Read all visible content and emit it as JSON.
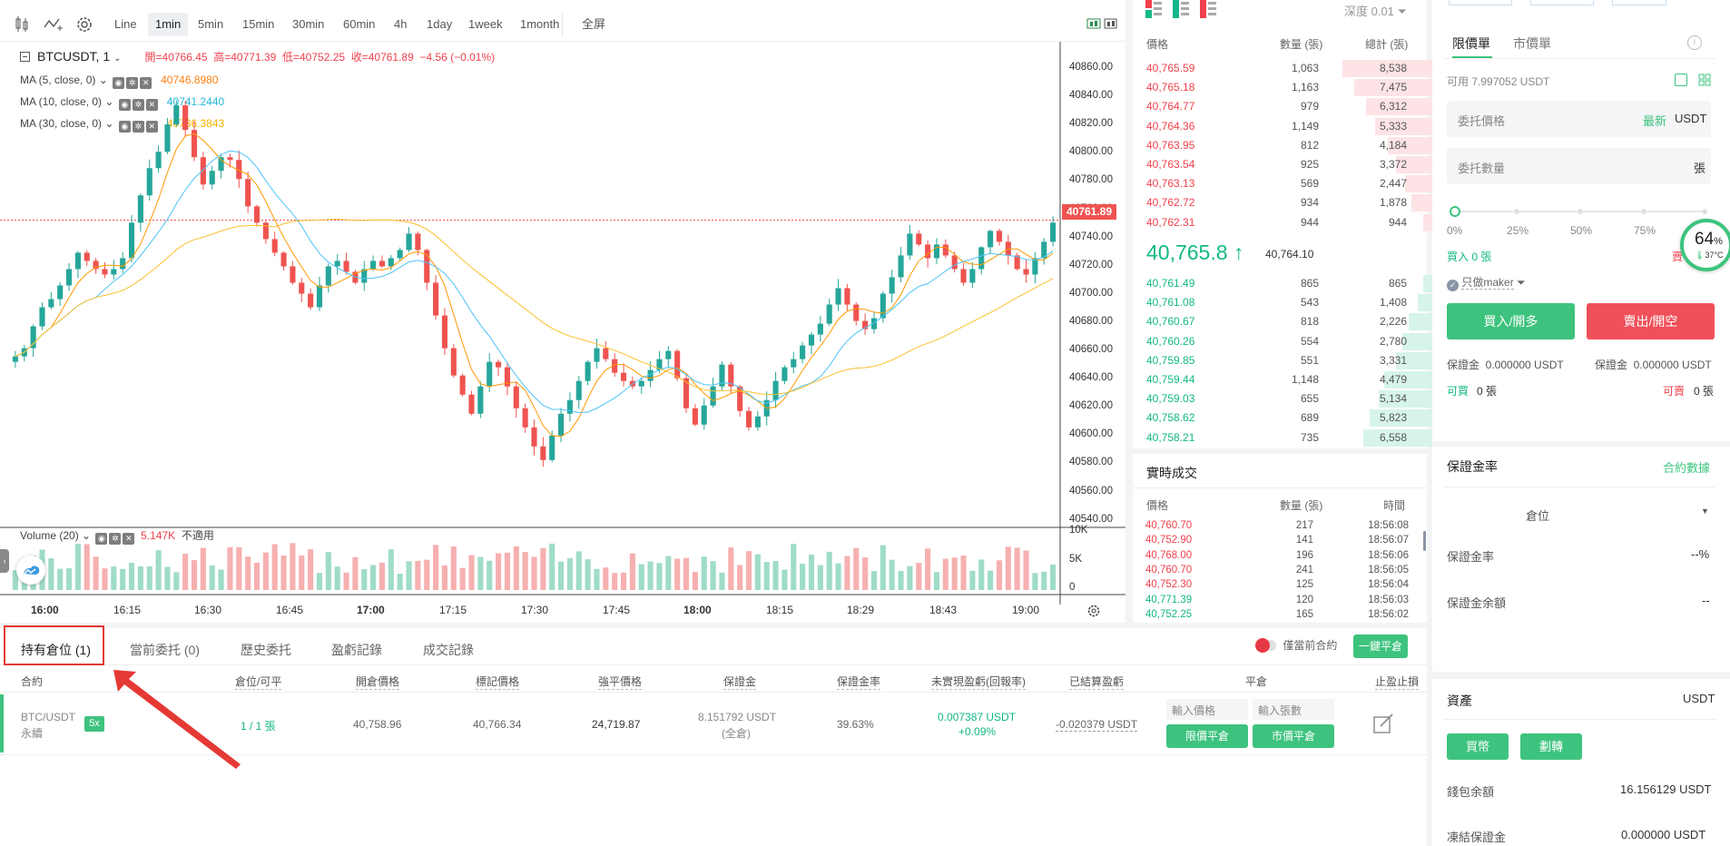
{
  "toolbar": {
    "intervals": [
      "Line",
      "1min",
      "5min",
      "15min",
      "30min",
      "60min",
      "4h",
      "1day",
      "1week",
      "1month",
      "全屏"
    ],
    "active": "1min"
  },
  "legend": {
    "symbol": "BTCUSDT, 1",
    "open_label": "開=40766.45",
    "high_label": "高=40771.39",
    "low_label": "低=40752.25",
    "close_label": "收=40761.89",
    "change": "−4.56 (−0.01%)",
    "ma5_label": "MA (5, close, 0)",
    "ma5_val": "40746.8980",
    "ma10_label": "MA (10, close, 0)",
    "ma10_val": "40741.2440",
    "ma30_label": "MA (30, close, 0)",
    "ma30_val": "40736.3843",
    "volume_label": "Volume (20)",
    "volume_val": "5.147K",
    "volume_na": "不適用"
  },
  "chart_data": {
    "type": "candlestick",
    "y_ticks": [
      "40860.00",
      "40840.00",
      "40820.00",
      "40800.00",
      "40780.00",
      "40760.00",
      "40740.00",
      "40720.00",
      "40700.00",
      "40680.00",
      "40660.00",
      "40640.00",
      "40620.00",
      "40600.00",
      "40580.00",
      "40560.00",
      "40540.00"
    ],
    "ylim": [
      40540,
      40870
    ],
    "x_ticks": [
      "16:00",
      "16:15",
      "16:30",
      "16:45",
      "17:00",
      "17:15",
      "17:30",
      "17:45",
      "18:00",
      "18:15",
      "18:29",
      "18:43",
      "19:00"
    ],
    "bold_x_ticks": [
      "16:00",
      "17:00",
      "18:00"
    ],
    "last_price": "40761.89",
    "volume_ticks": [
      "10K",
      "5K",
      "0"
    ],
    "colors": {
      "up": "#26a69a",
      "down": "#ef5350",
      "ma5": "#ff9800",
      "ma10": "#4fc3f7",
      "ma30": "#fbc02d"
    },
    "close_path": [
      40662,
      40668,
      40684,
      40698,
      40704,
      40714,
      40726,
      40738,
      40732,
      40726,
      40722,
      40726,
      40734,
      40760,
      40780,
      40800,
      40812,
      40832,
      40846,
      40828,
      40808,
      40788,
      40798,
      40808,
      40806,
      40792,
      40772,
      40760,
      40748,
      40738,
      40728,
      40716,
      40708,
      40698,
      40714,
      40728,
      40732,
      40724,
      40716,
      40726,
      40732,
      40728,
      40734,
      40740,
      40752,
      40740,
      40716,
      40692,
      40668,
      40648,
      40634,
      40620,
      40640,
      40658,
      40654,
      40640,
      40624,
      40610,
      40596,
      40586,
      40604,
      40620,
      40630,
      40644,
      40658,
      40668,
      40660,
      40650,
      40644,
      40640,
      40644,
      40652,
      40660,
      40666,
      40646,
      40624,
      40612,
      40626,
      40640,
      40656,
      40640,
      40622,
      40610,
      40618,
      40630,
      40644,
      40654,
      40660,
      40670,
      40678,
      40686,
      40700,
      40712,
      40700,
      40688,
      40682,
      40690,
      40708,
      40720,
      40736,
      40752,
      40744,
      40734,
      40744,
      40736,
      40726,
      40716,
      40726,
      40742,
      40754,
      40746,
      40736,
      40726,
      40722,
      40734,
      40746,
      40760
    ]
  },
  "orderbook": {
    "depth_label": "深度 0.01",
    "col_price": "價格",
    "col_qty": "數量 (張)",
    "col_total": "總計 (張)",
    "asks": [
      {
        "price": "40,765.59",
        "qty": "1,063",
        "total": "8,538",
        "pct": 0.3
      },
      {
        "price": "40,765.18",
        "qty": "1,163",
        "total": "7,475",
        "pct": 0.26
      },
      {
        "price": "40,764.77",
        "qty": "979",
        "total": "6,312",
        "pct": 0.22
      },
      {
        "price": "40,764.36",
        "qty": "1,149",
        "total": "5,333",
        "pct": 0.19
      },
      {
        "price": "40,763.95",
        "qty": "812",
        "total": "4,184",
        "pct": 0.15
      },
      {
        "price": "40,763.54",
        "qty": "925",
        "total": "3,372",
        "pct": 0.12
      },
      {
        "price": "40,763.13",
        "qty": "569",
        "total": "2,447",
        "pct": 0.09
      },
      {
        "price": "40,762.72",
        "qty": "934",
        "total": "1,878",
        "pct": 0.07
      },
      {
        "price": "40,762.31",
        "qty": "944",
        "total": "944",
        "pct": 0.03
      }
    ],
    "last_price": "40,765.8",
    "arrow": "↑",
    "mark_price": "40,764.10",
    "bids": [
      {
        "price": "40,761.49",
        "qty": "865",
        "total": "865",
        "pct": 0.03
      },
      {
        "price": "40,761.08",
        "qty": "543",
        "total": "1,408",
        "pct": 0.05
      },
      {
        "price": "40,760.67",
        "qty": "818",
        "total": "2,226",
        "pct": 0.08
      },
      {
        "price": "40,760.26",
        "qty": "554",
        "total": "2,780",
        "pct": 0.1
      },
      {
        "price": "40,759.85",
        "qty": "551",
        "total": "3,331",
        "pct": 0.12
      },
      {
        "price": "40,759.44",
        "qty": "1,148",
        "total": "4,479",
        "pct": 0.16
      },
      {
        "price": "40,759.03",
        "qty": "655",
        "total": "5,134",
        "pct": 0.18
      },
      {
        "price": "40,758.62",
        "qty": "689",
        "total": "5,823",
        "pct": 0.21
      },
      {
        "price": "40,758.21",
        "qty": "735",
        "total": "6,558",
        "pct": 0.23
      }
    ]
  },
  "trades": {
    "title": "實時成交",
    "col_price": "價格",
    "col_qty": "數量 (張)",
    "col_time": "時間",
    "rows": [
      {
        "price": "40,760.70",
        "qty": "217",
        "time": "18:56:08",
        "side": "sell"
      },
      {
        "price": "40,752.90",
        "qty": "141",
        "time": "18:56:07",
        "side": "sell"
      },
      {
        "price": "40,768.00",
        "qty": "196",
        "time": "18:56:06",
        "side": "sell"
      },
      {
        "price": "40,760.70",
        "qty": "241",
        "time": "18:56:05",
        "side": "sell"
      },
      {
        "price": "40,752.30",
        "qty": "125",
        "time": "18:56:04",
        "side": "sell"
      },
      {
        "price": "40,771.39",
        "qty": "120",
        "time": "18:56:03",
        "side": "buy"
      },
      {
        "price": "40,752.25",
        "qty": "165",
        "time": "18:56:02",
        "side": "buy"
      }
    ]
  },
  "order_panel": {
    "tab_limit": "限價單",
    "tab_market": "市價單",
    "available": "可用 7.997052 USDT",
    "price_label": "委托價格",
    "latest": "最新",
    "usdt": "USDT",
    "qty_label": "委托數量",
    "qty_unit": "張",
    "pcts": [
      "0%",
      "25%",
      "50%",
      "75%"
    ],
    "buy_qty": "買入 0 張",
    "sell_qty": "賣",
    "maker": "只做maker",
    "buy_btn": "買入/開多",
    "sell_btn": "賣出/開空",
    "margin_buy": "保證金  0.000000 USDT",
    "margin_sell": "保證金  0.000000 USDT",
    "can_buy": "可買",
    "can_buy_val": "0 張",
    "can_sell": "可賣",
    "can_sell_val": "0 張",
    "gauge_pct": "64",
    "gauge_unit": "%",
    "gauge_temp": "37°C"
  },
  "margin_panel": {
    "title": "保證金率",
    "link": "合約數據",
    "position_select": "倉位",
    "rate_label": "保證金率",
    "rate_val": "--%",
    "balance_label": "保證金余額",
    "balance_val": "--"
  },
  "assets": {
    "title": "資產",
    "unit": "USDT",
    "buy_coin": "買幣",
    "transfer": "劃轉",
    "wallet_label": "錢包余額",
    "wallet_val": "16.156129 USDT",
    "frozen_label": "凍結保證金",
    "frozen_val": "0.000000 USDT"
  },
  "bottom": {
    "tabs": [
      "持有倉位 (1)",
      "當前委托 (0)",
      "歷史委托",
      "盈虧記錄",
      "成交記錄"
    ],
    "only_current": "僅當前合約",
    "close_all": "一鍵平倉",
    "columns": [
      "合約",
      "倉位/可平",
      "開倉價格",
      "標記價格",
      "強平價格",
      "保證金",
      "保證金率",
      "未實現盈虧(回報率)",
      "已結算盈虧",
      "平倉",
      "止盈止損"
    ],
    "position": {
      "symbol": "BTC/USDT",
      "type": "永續",
      "leverage": "5x",
      "size": "1 / 1 張",
      "entry": "40,758.96",
      "mark": "40,766.34",
      "liq": "24,719.87",
      "margin": "8.151792 USDT",
      "margin_mode": "(全倉)",
      "margin_rate": "39.63%",
      "pnl": "0.007387 USDT",
      "roe": "+0.09%",
      "realized": "-0.020379 USDT",
      "price_input": "輸入價格",
      "qty_input": "輸入張數",
      "limit_close": "限價平倉",
      "market_close": "市價平倉"
    }
  }
}
